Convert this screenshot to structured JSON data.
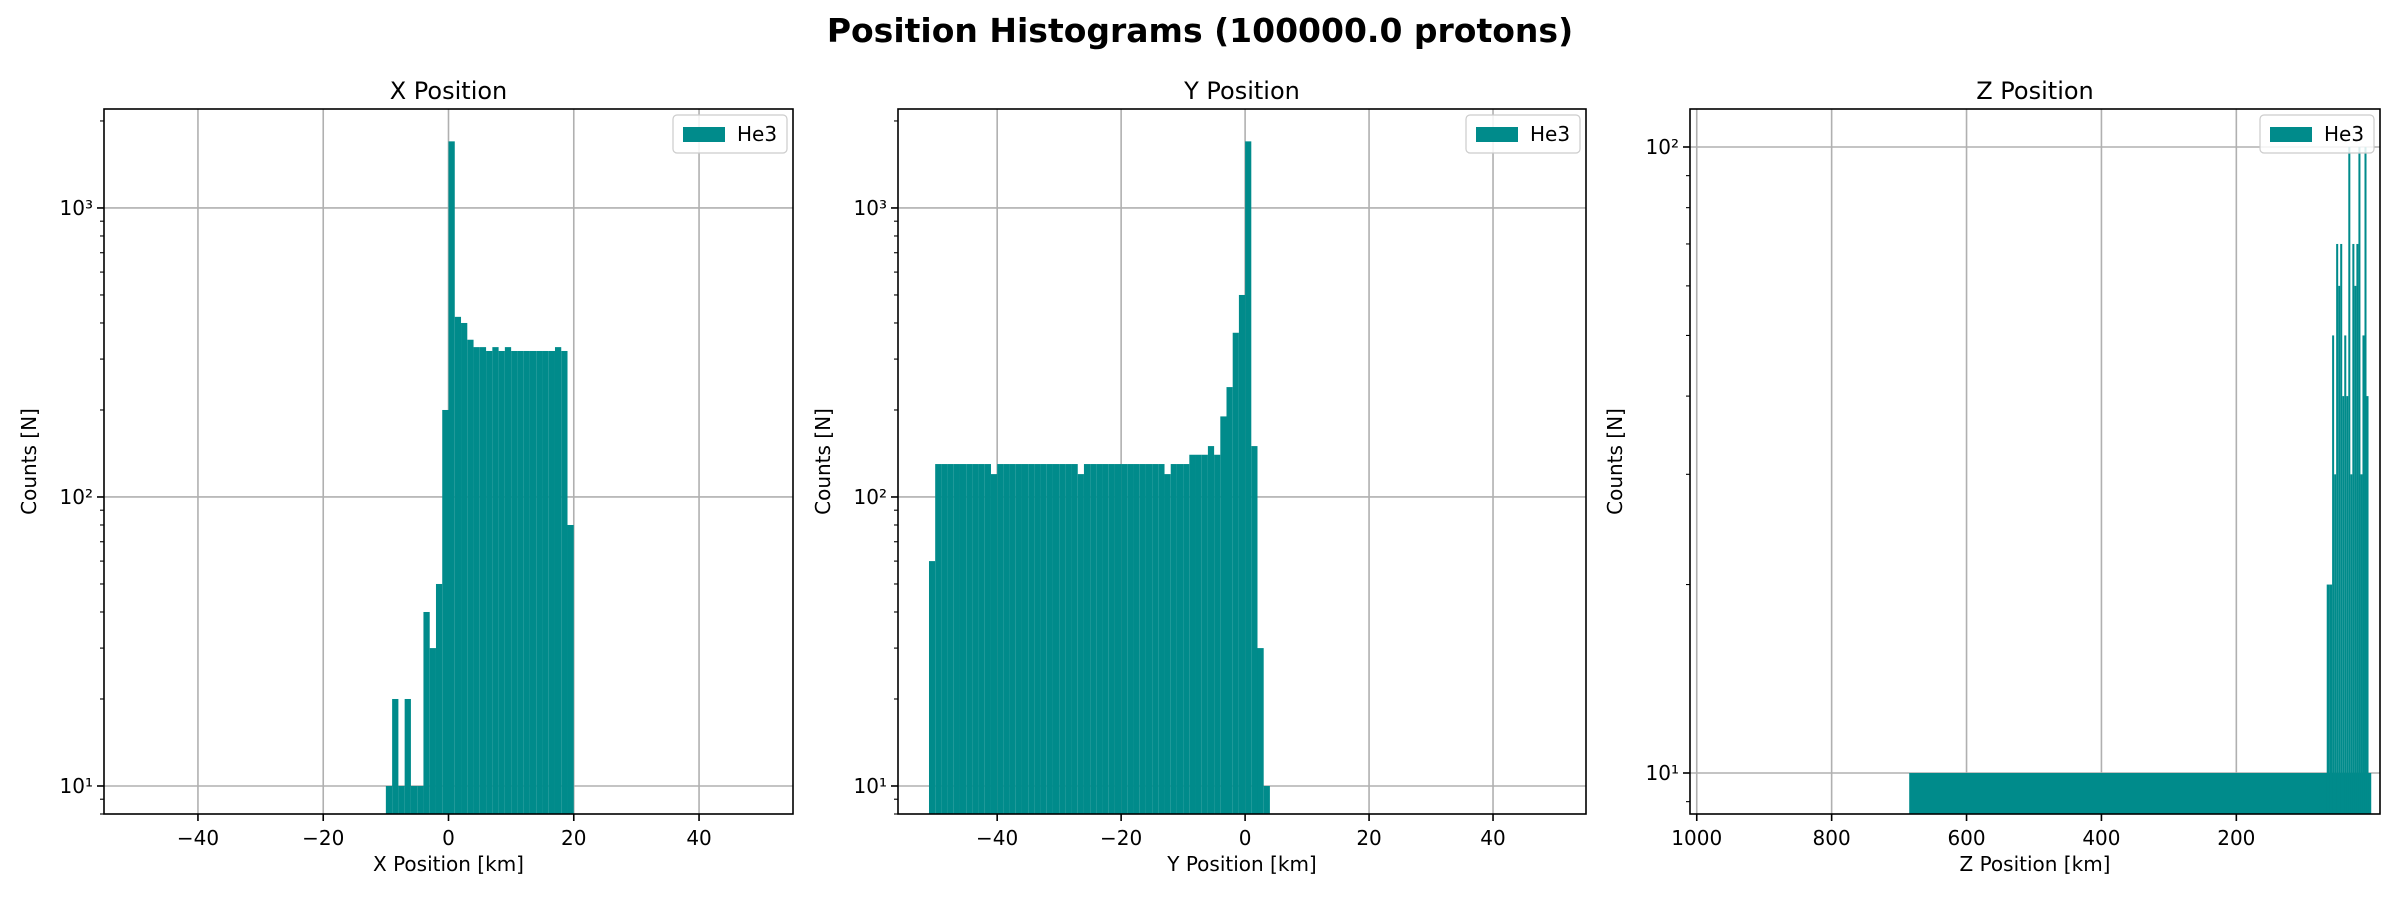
{
  "figure": {
    "title": "Position Histograms (100000.0 protons)"
  },
  "colors": {
    "bar": "#008b8b",
    "grid": "#b0b0b0",
    "frame": "#000000"
  },
  "chart_data": [
    {
      "type": "bar",
      "title": "X Position",
      "xlabel": "X Position [km]",
      "ylabel": "Counts [N]",
      "yscale": "log",
      "xlim": [
        -55,
        55
      ],
      "ylim": [
        8,
        2200
      ],
      "xticks": [
        -40,
        -20,
        0,
        20,
        40
      ],
      "xtick_labels": [
        "−40",
        "−20",
        "0",
        "20",
        "40"
      ],
      "yticks": [
        10,
        100,
        1000
      ],
      "ytick_labels": [
        "10¹",
        "10²",
        "10³"
      ],
      "legend": "He3",
      "legend_position": "top-right",
      "bin_width": 1,
      "bins": [
        [
          -10,
          10
        ],
        [
          -9,
          20
        ],
        [
          -8,
          10
        ],
        [
          -7,
          20
        ],
        [
          -6,
          10
        ],
        [
          -5,
          10
        ],
        [
          -4,
          40
        ],
        [
          -3,
          30
        ],
        [
          -2,
          50
        ],
        [
          -1,
          200
        ],
        [
          0,
          1700
        ],
        [
          1,
          420
        ],
        [
          2,
          400
        ],
        [
          3,
          350
        ],
        [
          4,
          330
        ],
        [
          5,
          330
        ],
        [
          6,
          320
        ],
        [
          7,
          330
        ],
        [
          8,
          320
        ],
        [
          9,
          330
        ],
        [
          10,
          320
        ],
        [
          11,
          320
        ],
        [
          12,
          320
        ],
        [
          13,
          320
        ],
        [
          14,
          320
        ],
        [
          15,
          320
        ],
        [
          16,
          320
        ],
        [
          17,
          330
        ],
        [
          18,
          320
        ],
        [
          19,
          80
        ]
      ]
    },
    {
      "type": "bar",
      "title": "Y Position",
      "xlabel": "Y Position [km]",
      "ylabel": "Counts [N]",
      "yscale": "log",
      "xlim": [
        -56,
        55
      ],
      "ylim": [
        8,
        2200
      ],
      "xticks": [
        -40,
        -20,
        0,
        20,
        40
      ],
      "xtick_labels": [
        "−40",
        "−20",
        "0",
        "20",
        "40"
      ],
      "yticks": [
        10,
        100,
        1000
      ],
      "ytick_labels": [
        "10¹",
        "10²",
        "10³"
      ],
      "legend": "He3",
      "legend_position": "top-right",
      "bin_width": 1,
      "bins": [
        [
          -51,
          60
        ],
        [
          -50,
          130
        ],
        [
          -49,
          130
        ],
        [
          -48,
          130
        ],
        [
          -47,
          130
        ],
        [
          -46,
          130
        ],
        [
          -45,
          130
        ],
        [
          -44,
          130
        ],
        [
          -43,
          130
        ],
        [
          -42,
          130
        ],
        [
          -41,
          120
        ],
        [
          -40,
          130
        ],
        [
          -39,
          130
        ],
        [
          -38,
          130
        ],
        [
          -37,
          130
        ],
        [
          -36,
          130
        ],
        [
          -35,
          130
        ],
        [
          -34,
          130
        ],
        [
          -33,
          130
        ],
        [
          -32,
          130
        ],
        [
          -31,
          130
        ],
        [
          -30,
          130
        ],
        [
          -29,
          130
        ],
        [
          -28,
          130
        ],
        [
          -27,
          120
        ],
        [
          -26,
          130
        ],
        [
          -25,
          130
        ],
        [
          -24,
          130
        ],
        [
          -23,
          130
        ],
        [
          -22,
          130
        ],
        [
          -21,
          130
        ],
        [
          -20,
          130
        ],
        [
          -19,
          130
        ],
        [
          -18,
          130
        ],
        [
          -17,
          130
        ],
        [
          -16,
          130
        ],
        [
          -15,
          130
        ],
        [
          -14,
          130
        ],
        [
          -13,
          120
        ],
        [
          -12,
          130
        ],
        [
          -11,
          130
        ],
        [
          -10,
          130
        ],
        [
          -9,
          140
        ],
        [
          -8,
          140
        ],
        [
          -7,
          140
        ],
        [
          -6,
          150
        ],
        [
          -5,
          140
        ],
        [
          -4,
          190
        ],
        [
          -3,
          240
        ],
        [
          -2,
          370
        ],
        [
          -1,
          500
        ],
        [
          0,
          1700
        ],
        [
          1,
          150
        ],
        [
          2,
          30
        ],
        [
          3,
          10
        ]
      ]
    },
    {
      "type": "bar",
      "title": "Z Position",
      "xlabel": "Z Position [km]",
      "ylabel": "Counts [N]",
      "yscale": "log",
      "xlim": [
        1010,
        -13
      ],
      "ylim": [
        8.6,
        115
      ],
      "xticks": [
        1000,
        800,
        600,
        400,
        200
      ],
      "xtick_labels": [
        "1000",
        "800",
        "600",
        "400",
        "200"
      ],
      "yticks": [
        10,
        100
      ],
      "ytick_labels": [
        "10¹",
        "10²"
      ],
      "legend": "He3",
      "legend_position": "top-right",
      "bins_xy": [
        [
          685,
          0,
          10
        ],
        [
          66,
          62,
          20
        ],
        [
          62,
          58,
          20
        ],
        [
          58,
          55,
          50
        ],
        [
          55,
          52,
          30
        ],
        [
          52,
          49,
          70
        ],
        [
          49,
          46,
          60
        ],
        [
          46,
          43,
          70
        ],
        [
          43,
          40,
          40
        ],
        [
          40,
          37,
          50
        ],
        [
          37,
          34,
          40
        ],
        [
          34,
          31,
          100
        ],
        [
          31,
          28,
          30
        ],
        [
          28,
          25,
          70
        ],
        [
          25,
          22,
          60
        ],
        [
          22,
          19,
          70
        ],
        [
          19,
          16,
          100
        ],
        [
          16,
          13,
          30
        ],
        [
          13,
          10,
          50
        ],
        [
          10,
          7,
          100
        ],
        [
          7,
          4,
          40
        ]
      ]
    }
  ]
}
